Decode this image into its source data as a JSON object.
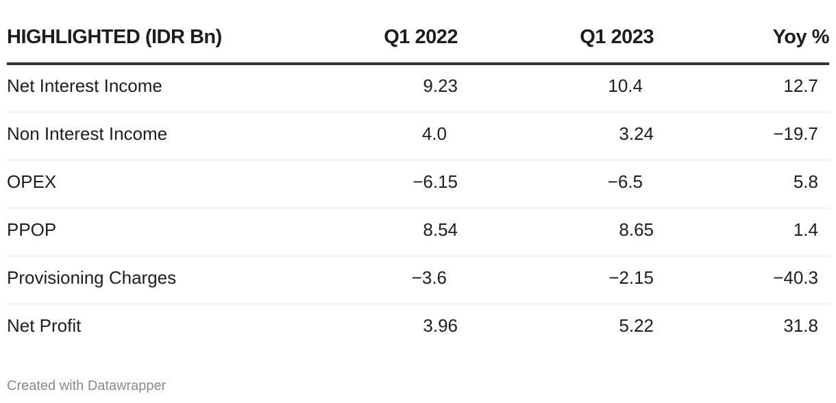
{
  "chart_data": {
    "type": "table",
    "columns": [
      "HIGHLIGHTED (IDR Bn)",
      "Q1 2022",
      "Q1 2023",
      "Yoy %"
    ],
    "rows": [
      {
        "label": "Net Interest Income",
        "q1_2022": "9.23",
        "q1_2023": "10.4",
        "yoy": "12.7"
      },
      {
        "label": "Non Interest Income",
        "q1_2022": "4.0",
        "q1_2023": "3.24",
        "yoy": "−19.7"
      },
      {
        "label": "OPEX",
        "q1_2022": "−6.15",
        "q1_2023": "−6.5",
        "yoy": "5.8"
      },
      {
        "label": "PPOP",
        "q1_2022": "8.54",
        "q1_2023": "8.65",
        "yoy": "1.4"
      },
      {
        "label": "Provisioning Charges",
        "q1_2022": "−3.6",
        "q1_2023": "−2.15",
        "yoy": "−40.3"
      },
      {
        "label": "Net Profit",
        "q1_2022": "3.96",
        "q1_2023": "5.22",
        "yoy": "31.8"
      }
    ]
  },
  "footer": {
    "credit": "Created with Datawrapper"
  }
}
